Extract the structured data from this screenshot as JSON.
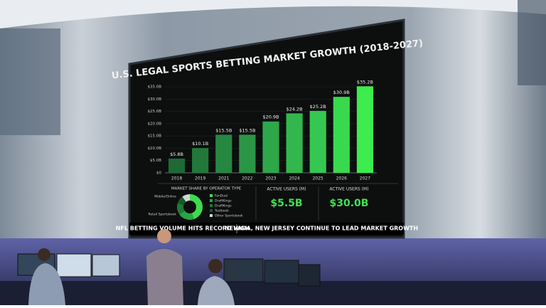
{
  "chart_data": [
    {
      "type": "bar",
      "title": "U.S. LEGAL SPORTS BETTING MARKET GROWTH (2018-2027)",
      "categories": [
        "2018",
        "2019",
        "2021",
        "2022",
        "2023",
        "2024",
        "2025",
        "2026",
        "2027"
      ],
      "values": [
        5.8,
        10.1,
        15.5,
        15.5,
        20.9,
        24.2,
        25.2,
        30.9,
        35.2
      ],
      "value_labels": [
        "$5.8B",
        "$10.1B",
        "$15.5B",
        "$15.5B",
        "$20.9B",
        "$24.2B",
        "$25.2B",
        "$30.9B",
        "$35.2B"
      ],
      "colors": [
        "#1e6a34",
        "#22783a",
        "#268740",
        "#2a9645",
        "#2ea64a",
        "#32b74d",
        "#35c850",
        "#38d94f",
        "#3dec4d"
      ],
      "ylim": [
        0,
        35
      ],
      "yticks": [
        {
          "value": 0,
          "label": "$0"
        },
        {
          "value": 5,
          "label": "$5.0B"
        },
        {
          "value": 10,
          "label": "$10.0B"
        },
        {
          "value": 15,
          "label": "$15.0B"
        },
        {
          "value": 20,
          "label": "$20.0B"
        },
        {
          "value": 25,
          "label": "$25.0B"
        },
        {
          "value": 30,
          "label": "$30.0B"
        },
        {
          "value": 35,
          "label": "$35.0B"
        }
      ]
    },
    {
      "type": "pie",
      "title": "MARKET SHARE BY OPERATOR TYPE",
      "categories": [
        "FanDuel",
        "DraftKings",
        "DraftKings",
        "Testbook",
        "Other Sportsbook"
      ],
      "values": [
        45,
        20,
        15,
        10,
        10
      ],
      "colors": [
        "#3ddc4f",
        "#2aa644",
        "#1f7a36",
        "#175a2a",
        "#cfd8d2"
      ],
      "annotations": [
        "Mobile/Online",
        "Retail Sportsbook"
      ]
    }
  ],
  "panels": [
    {
      "label": "ACTIVE USERS (M)",
      "value": "$5.5B"
    },
    {
      "label": "ACTIVE USERS (M)",
      "value": "$30.0B"
    }
  ],
  "ticker": [
    "NFL BETTING VOLUME HITS RECORD HIGH",
    "NEVADA, NEW JERSEY CONTINUE TO LEAD MARKET GROWTH"
  ]
}
